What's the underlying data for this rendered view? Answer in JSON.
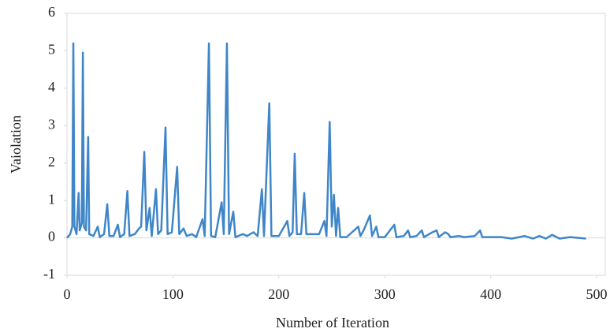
{
  "chart_data": {
    "type": "line",
    "x_label": "Number of Iteration",
    "y_label": "Vaiolation",
    "color": "#3f86c8",
    "x": [
      0,
      3,
      5,
      6,
      7,
      9,
      11,
      12,
      14,
      15,
      16,
      18,
      20,
      21,
      25,
      29,
      31,
      35,
      38,
      40,
      44,
      48,
      50,
      54,
      57,
      59,
      64,
      68,
      70,
      73,
      75,
      78,
      80,
      84,
      86,
      89,
      93,
      95,
      99,
      104,
      106,
      110,
      113,
      118,
      122,
      128,
      130,
      134,
      136,
      140,
      146,
      148,
      151,
      153,
      157,
      159,
      166,
      170,
      176,
      180,
      184,
      186,
      191,
      193,
      200,
      208,
      210,
      213,
      215,
      217,
      221,
      224,
      226,
      232,
      238,
      243,
      245,
      248,
      250,
      252,
      254,
      256,
      258,
      264,
      275,
      277,
      280,
      286,
      288,
      292,
      294,
      300,
      309,
      311,
      318,
      322,
      324,
      330,
      335,
      337,
      345,
      349,
      351,
      357,
      360,
      362,
      370,
      375,
      385,
      390,
      392,
      400,
      410,
      420,
      432,
      440,
      446,
      452,
      458,
      465,
      475,
      490
    ],
    "values": [
      0,
      0.1,
      0.3,
      5.2,
      0.3,
      0.1,
      1.2,
      0.2,
      0.4,
      4.95,
      0.3,
      0.2,
      2.7,
      0.1,
      0.05,
      0.3,
      0.02,
      0.1,
      0.9,
      0.05,
      0.05,
      0.35,
      0.02,
      0.1,
      1.25,
      0.05,
      0.1,
      0.25,
      0.3,
      2.3,
      0.2,
      0.8,
      0.05,
      1.3,
      0.1,
      0.2,
      2.95,
      0.1,
      0.15,
      1.9,
      0.1,
      0.25,
      0.05,
      0.1,
      0.02,
      0.5,
      0.05,
      5.2,
      0.05,
      0.02,
      0.95,
      0.1,
      5.2,
      0.1,
      0.7,
      0.02,
      0.1,
      0.05,
      0.15,
      0.05,
      1.3,
      0.05,
      3.6,
      0.05,
      0.05,
      0.45,
      0.05,
      0.15,
      2.25,
      0.1,
      0.1,
      1.2,
      0.1,
      0.1,
      0.1,
      0.45,
      0.05,
      3.1,
      0.3,
      1.15,
      0.05,
      0.8,
      0.02,
      0.02,
      0.3,
      0.05,
      0.2,
      0.6,
      0.05,
      0.3,
      0.02,
      0.02,
      0.35,
      0.02,
      0.05,
      0.2,
      0.02,
      0.05,
      0.2,
      0.02,
      0.15,
      0.2,
      0.02,
      0.15,
      0.1,
      0.02,
      0.05,
      0.02,
      0.05,
      0.2,
      0.02,
      0.02,
      0.02,
      -0.02,
      0.05,
      -0.02,
      0.05,
      -0.02,
      0.08,
      -0.02,
      0.02,
      -0.02
    ],
    "xlim": [
      0,
      500
    ],
    "xticks": [
      0,
      100,
      200,
      300,
      400,
      500
    ],
    "ylim": [
      -1,
      6
    ],
    "yticks": [
      -1,
      0,
      1,
      2,
      3,
      4,
      5,
      6
    ]
  }
}
